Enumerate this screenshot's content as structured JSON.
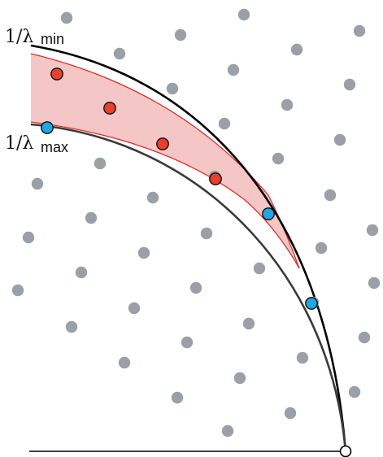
{
  "labels": {
    "outer": {
      "main": "1/λ",
      "sub": "min"
    },
    "inner": {
      "main": "1/λ",
      "sub": "max"
    }
  },
  "colors": {
    "background": "#ffffff",
    "lattice_point": "#9aa0a6",
    "outer_arc": "#000000",
    "inner_arc": "#3a3a3a",
    "band_fill": "#f4c6c6",
    "band_edge": "#e0302a",
    "in_band_point": "#e8402c",
    "on_boundary_point": "#1fa8e0",
    "point_outline": "#111111"
  }
}
